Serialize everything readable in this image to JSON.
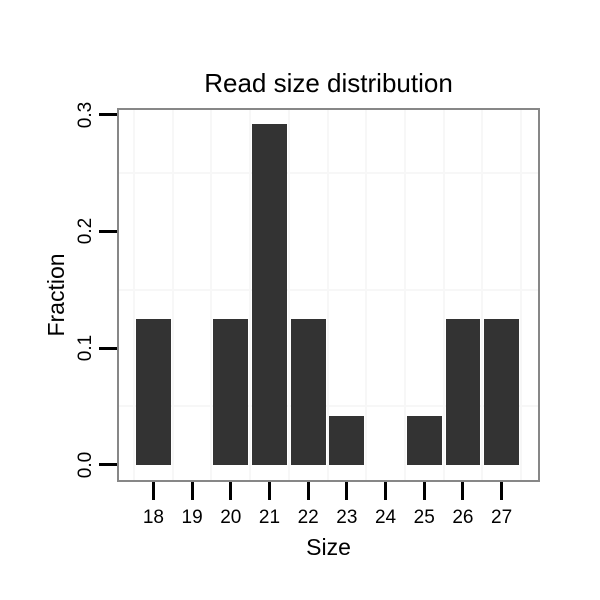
{
  "figure": {
    "background": "#ffffff"
  },
  "chart_data": {
    "type": "bar",
    "title": "Read size distribution",
    "xlabel": "Size",
    "ylabel": "Fraction",
    "categories": [
      18,
      19,
      20,
      21,
      22,
      23,
      24,
      25,
      26,
      27
    ],
    "values": [
      0.125,
      0,
      0.125,
      0.292,
      0.125,
      0.042,
      0,
      0.042,
      0.125,
      0.125
    ],
    "x_tick_labels": [
      "18",
      "19",
      "20",
      "21",
      "22",
      "23",
      "24",
      "25",
      "26",
      "27"
    ],
    "y_ticks": [
      {
        "label": "0.0",
        "value": 0.0
      },
      {
        "label": "0.1",
        "value": 0.1
      },
      {
        "label": "0.2",
        "value": 0.2
      },
      {
        "label": "0.3",
        "value": 0.3
      }
    ],
    "xlim": [
      17.11,
      27.94
    ],
    "ylim": [
      -0.013,
      0.304
    ],
    "bar_width_units": 0.9,
    "bar_color": "#333333",
    "grid": {
      "style": "minor-only",
      "minor_x": [
        17.5,
        18.5,
        19.5,
        20.5,
        21.5,
        22.5,
        23.5,
        24.5,
        25.5,
        26.5,
        27.5
      ],
      "minor_y": [
        0.05,
        0.15,
        0.25
      ],
      "color": "#f7f7f7"
    },
    "panel_border_color": "#878787",
    "tick_color": "#000000",
    "legend": "none"
  }
}
